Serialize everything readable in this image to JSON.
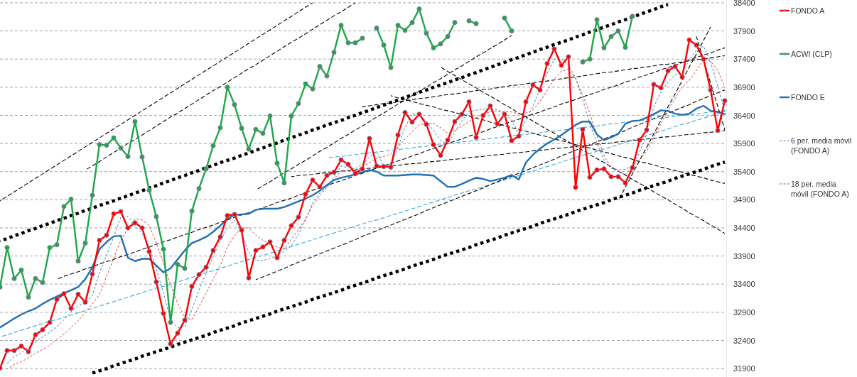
{
  "chart_data": {
    "type": "line",
    "categories": [
      null,
      null,
      null,
      null,
      null,
      null,
      null,
      null,
      null,
      null,
      null,
      null,
      null,
      null,
      null,
      null,
      null,
      null,
      null,
      null,
      null,
      null,
      null,
      null,
      null,
      null,
      null,
      null,
      null,
      null,
      null,
      null,
      null,
      null,
      null,
      null,
      null,
      null,
      null,
      null,
      null,
      null,
      null,
      null,
      null,
      null,
      null,
      null,
      null,
      null,
      null,
      null,
      null,
      null,
      null,
      null,
      null,
      null,
      null,
      null,
      null,
      null,
      null,
      null,
      null,
      null,
      null,
      null,
      null,
      null,
      null,
      null,
      null,
      null,
      null,
      null,
      null,
      null,
      null,
      null,
      null,
      null,
      null,
      null,
      null,
      null,
      null,
      null,
      null,
      null,
      null,
      null,
      null,
      null,
      null,
      null,
      null,
      null,
      null,
      null,
      null,
      null,
      null
    ],
    "ylim": [
      31750,
      38450
    ],
    "yticks": [
      31900,
      32400,
      32900,
      33400,
      33900,
      34400,
      34900,
      35400,
      35900,
      36400,
      36900,
      37400,
      37900,
      38400
    ],
    "tick_labels": "y",
    "grid": "y",
    "legend": "right",
    "series": [
      {
        "name": "FONDO A",
        "color": "#ff0000",
        "marker": "circle",
        "values": [
          31910,
          32220,
          32220,
          32300,
          32200,
          32500,
          32590,
          32720,
          33130,
          33230,
          32970,
          33220,
          33080,
          33580,
          34180,
          34270,
          34650,
          34690,
          34400,
          34490,
          34400,
          33980,
          33440,
          32880,
          32340,
          32530,
          32760,
          33360,
          33570,
          33700,
          34000,
          34240,
          34620,
          34640,
          34360,
          33510,
          34000,
          34060,
          34150,
          33870,
          34180,
          34440,
          34590,
          35000,
          35250,
          35130,
          35330,
          35390,
          35610,
          35530,
          35370,
          35450,
          35990,
          35500,
          35490,
          35480,
          36050,
          36450,
          36280,
          36420,
          36240,
          35880,
          35690,
          35960,
          36290,
          36420,
          36640,
          36010,
          36400,
          36570,
          36250,
          36420,
          35950,
          36030,
          36640,
          36940,
          36850,
          37320,
          37580,
          37290,
          37440,
          35120,
          36150,
          35300,
          35430,
          35450,
          35310,
          35310,
          35200,
          35470,
          35960,
          36140,
          36950,
          36890,
          37190,
          37270,
          37080,
          37740,
          37650,
          37400,
          36850,
          36130,
          36660
        ]
      },
      {
        "name": "ACWI (CLP)",
        "color": "#1fa64a",
        "marker": "circle",
        "values": [
          33350,
          34050,
          33500,
          33650,
          33170,
          33500,
          33430,
          34050,
          34100,
          34780,
          34910,
          33810,
          34130,
          34980,
          35880,
          35870,
          36000,
          35820,
          35670,
          36290,
          35660,
          35070,
          34600,
          34020,
          32720,
          33750,
          33680,
          34700,
          35100,
          35450,
          35860,
          36180,
          36900,
          36590,
          36170,
          35800,
          36150,
          36080,
          36390,
          35550,
          35200,
          36390,
          36610,
          36960,
          36870,
          37270,
          37100,
          37520,
          38000,
          37690,
          37690,
          37770,
          null,
          37950,
          37650,
          37250,
          38000,
          37910,
          38050,
          38290,
          37860,
          37600,
          37670,
          37800,
          38050,
          null,
          38080,
          38030,
          null,
          null,
          null,
          38130,
          37900,
          null,
          null,
          null,
          null,
          null,
          null,
          null,
          null,
          null,
          37350,
          37400,
          38100,
          37600,
          37800,
          37900,
          37610,
          38160,
          null,
          null,
          null,
          null,
          null,
          null,
          null,
          null,
          null,
          null,
          null,
          null,
          null
        ]
      },
      {
        "name": "FONDO E",
        "color": "#2270b4",
        "values": [
          32630,
          32710,
          32790,
          32860,
          32920,
          32970,
          33050,
          33120,
          33180,
          33240,
          33290,
          33350,
          33490,
          33700,
          34020,
          34150,
          34250,
          34260,
          33870,
          33810,
          33850,
          33850,
          33730,
          33610,
          33680,
          33840,
          34000,
          34130,
          34180,
          34240,
          34330,
          34440,
          34560,
          34630,
          34640,
          34650,
          34720,
          34740,
          34740,
          34740,
          34770,
          34820,
          34870,
          34920,
          34980,
          35060,
          35160,
          35250,
          35290,
          35320,
          35350,
          35390,
          35430,
          35400,
          35330,
          35330,
          35330,
          35340,
          35350,
          35350,
          35340,
          35330,
          35230,
          35130,
          35130,
          35180,
          35240,
          35290,
          35270,
          35230,
          35260,
          35290,
          35340,
          35260,
          35560,
          35700,
          35810,
          35900,
          35970,
          36050,
          36140,
          36230,
          36290,
          36290,
          36060,
          35960,
          36010,
          36070,
          36250,
          36300,
          36310,
          36360,
          36420,
          36490,
          36480,
          36430,
          36410,
          36430,
          36520,
          36570,
          36480,
          36460,
          36420
        ]
      },
      {
        "name": "6 per. media móvil (FONDO A)",
        "color": "#3a86cc",
        "line_style": "dashed",
        "values": [
          null,
          31990,
          32110,
          32180,
          32280,
          32370,
          32460,
          32550,
          32640,
          32770,
          32910,
          33020,
          33060,
          33200,
          33600,
          33920,
          34240,
          34590,
          34600,
          34440,
          34300,
          34070,
          33670,
          33240,
          32760,
          32630,
          32640,
          32950,
          33290,
          33600,
          33890,
          34170,
          34400,
          34530,
          34310,
          33970,
          33830,
          33820,
          33860,
          33910,
          33980,
          34080,
          34290,
          34540,
          34850,
          35020,
          35120,
          35310,
          35500,
          35470,
          35450,
          35530,
          35660,
          35750,
          35500,
          35530,
          35830,
          36190,
          36420,
          36420,
          36300,
          36130,
          35950,
          35890,
          36110,
          36300,
          36470,
          36490,
          36510,
          36510,
          36500,
          36440,
          36310,
          36080,
          36310,
          36560,
          36880,
          37150,
          37400,
          37400,
          37290,
          37070,
          36680,
          36240,
          35920,
          35600,
          35460,
          35410,
          35350,
          35500,
          35740,
          36060,
          36550,
          36810,
          36990,
          37120,
          37180,
          37380,
          37560,
          37630,
          37350,
          36920,
          36470
        ]
      },
      {
        "name": "18 per. media móvil (FONDO A)",
        "color": "#e04040",
        "line_style": "dashed",
        "values": [
          null,
          31890,
          31970,
          32020,
          32090,
          32170,
          32240,
          32310,
          32420,
          32510,
          32630,
          32750,
          32890,
          33050,
          33220,
          33540,
          33860,
          34180,
          34390,
          34560,
          34540,
          34440,
          34130,
          33780,
          33390,
          33060,
          32820,
          32760,
          33000,
          33240,
          33490,
          33730,
          34060,
          34260,
          34400,
          34400,
          34270,
          34180,
          34100,
          34060,
          34020,
          34200,
          34370,
          34560,
          34800,
          34970,
          35120,
          35270,
          35410,
          35410,
          35410,
          35490,
          35560,
          35640,
          35670,
          35710,
          35840,
          35980,
          36110,
          36230,
          36260,
          36260,
          36180,
          36080,
          36130,
          36210,
          36290,
          36360,
          36410,
          36470,
          36470,
          36470,
          36460,
          36430,
          36440,
          36490,
          36650,
          36840,
          37040,
          37190,
          37210,
          37050,
          36760,
          36440,
          36050,
          35680,
          35480,
          35430,
          35440,
          35500,
          35620,
          35760,
          36010,
          36250,
          36490,
          36700,
          36900,
          37020,
          37200,
          37400,
          37360,
          37210,
          36890
        ]
      },
      {
        "color": "#000000",
        "line_style": "dotted",
        "values": [
          34170,
          34210,
          34260,
          34300,
          34350,
          34390,
          34440,
          34480,
          34530,
          34570,
          34620,
          34660,
          34710,
          34750,
          34800,
          34840,
          34880,
          34930,
          34970,
          35020,
          35060,
          35110,
          35150,
          35200,
          35240,
          35290,
          35330,
          35380,
          35420,
          35470,
          35510,
          35560,
          35600,
          35640,
          35690,
          35730,
          35780,
          35820,
          35870,
          35910,
          35960,
          36000,
          36050,
          36090,
          36140,
          36180,
          36230,
          36270,
          36310,
          36360,
          36400,
          36450,
          36490,
          36540,
          36580,
          36630,
          36670,
          36720,
          36760,
          36810,
          36850,
          36900,
          36940,
          36980,
          37030,
          37070,
          37120,
          37160,
          37210,
          37250,
          37300,
          37340,
          37390,
          37430,
          37480,
          37520,
          37570,
          37610,
          37660,
          37700,
          37740,
          37790,
          37830,
          37880,
          37920,
          37970,
          38010,
          38060,
          38100,
          38150,
          38190,
          38240,
          38280,
          38330,
          38370,
          null,
          null,
          null,
          null,
          null,
          null,
          null,
          null
        ]
      },
      {
        "color": "#000000",
        "line_style": "dotted",
        "values": [
          null,
          null,
          null,
          null,
          null,
          null,
          null,
          null,
          null,
          null,
          null,
          null,
          null,
          31820,
          31860,
          31900,
          31950,
          31990,
          32030,
          32070,
          32120,
          32160,
          32200,
          32240,
          32280,
          32330,
          32370,
          32410,
          32450,
          32490,
          32540,
          32580,
          32620,
          32660,
          32710,
          32750,
          32790,
          32830,
          32870,
          32920,
          32960,
          33000,
          33040,
          33080,
          33130,
          33170,
          33210,
          33250,
          33290,
          33340,
          33380,
          33420,
          33460,
          33510,
          33550,
          33590,
          33630,
          33670,
          33720,
          33760,
          33800,
          33840,
          33890,
          33930,
          33970,
          34010,
          34050,
          34100,
          34140,
          34180,
          34220,
          34270,
          34310,
          34350,
          34390,
          34430,
          34480,
          34520,
          34560,
          34600,
          34640,
          34690,
          34730,
          34770,
          34810,
          34850,
          34900,
          34940,
          34980,
          35020,
          35070,
          35110,
          35150,
          35190,
          35230,
          35280,
          35320,
          35360,
          35400,
          35440,
          35490,
          35530,
          35570
        ]
      },
      {
        "color": "#000000",
        "line_style": "dashed",
        "values": [
          null,
          null,
          null,
          null,
          null,
          null,
          null,
          null,
          null,
          null,
          null,
          null,
          null,
          null,
          null,
          null,
          null,
          null,
          null,
          null,
          null,
          null,
          null,
          null,
          null,
          null,
          null,
          null,
          null,
          null,
          null,
          null,
          null,
          null,
          null,
          null,
          null,
          null,
          null,
          null,
          null,
          null,
          null,
          null,
          null,
          null,
          null,
          null,
          null,
          null,
          null,
          36550,
          36570,
          36590,
          36610,
          36620,
          36640,
          36660,
          36680,
          36700,
          36710,
          36730,
          36750,
          36770,
          36780,
          36800,
          36820,
          36840,
          36860,
          36870,
          36890,
          36910,
          36930,
          36940,
          36960,
          36980,
          37000,
          37010,
          37030,
          37050,
          37070,
          37080,
          37100,
          37120,
          37140,
          37160,
          37170,
          37190,
          37210,
          37230,
          37240,
          37260,
          37280,
          37300,
          37310,
          37330,
          37350,
          37370,
          37390,
          37400,
          37420,
          37440,
          37460
        ]
      },
      {
        "color": "#000000",
        "line_style": "dashed",
        "values": [
          null,
          null,
          null,
          null,
          null,
          null,
          null,
          null,
          null,
          null,
          null,
          null,
          null,
          null,
          null,
          null,
          null,
          null,
          null,
          null,
          null,
          null,
          null,
          null,
          null,
          null,
          null,
          null,
          null,
          null,
          null,
          null,
          null,
          null,
          null,
          null,
          null,
          null,
          null,
          null,
          null,
          35310,
          35330,
          35340,
          35350,
          35370,
          35380,
          35390,
          35410,
          35420,
          35430,
          35450,
          35460,
          35470,
          35490,
          35500,
          35510,
          35530,
          35540,
          35550,
          35570,
          35580,
          35590,
          35610,
          35620,
          35630,
          35650,
          35660,
          35670,
          35690,
          35700,
          35710,
          35730,
          35740,
          35750,
          35770,
          35780,
          35790,
          35810,
          35820,
          35830,
          35850,
          35860,
          35870,
          35890,
          35900,
          35910,
          35930,
          35940,
          35950,
          35970,
          35980,
          35990,
          36010,
          36020,
          36030,
          36050,
          36060,
          36070,
          36090,
          36100,
          36110,
          36130
        ]
      },
      {
        "color": "#000000",
        "line_style": "dashed",
        "values": [
          34880,
          34960,
          35040,
          35120,
          35200,
          35280,
          35360,
          35440,
          35520,
          35600,
          35680,
          35760,
          35840,
          35920,
          36000,
          36080,
          36160,
          36240,
          36320,
          36400,
          36480,
          36560,
          36640,
          36720,
          36800,
          36880,
          36960,
          37040,
          37120,
          37200,
          37280,
          37360,
          37440,
          37520,
          37600,
          37680,
          37760,
          37840,
          37920,
          38000,
          38080,
          38160,
          38240,
          38320,
          38400,
          null,
          null,
          null,
          null,
          null,
          null,
          null,
          null,
          null,
          null,
          null,
          null,
          null,
          null,
          null,
          null,
          null,
          null,
          null,
          null,
          null,
          null,
          null,
          null,
          null,
          null,
          null,
          null,
          null,
          null,
          null,
          null,
          null,
          null,
          null,
          null,
          null,
          null,
          null,
          null,
          null,
          null,
          null,
          null,
          null,
          null,
          null,
          null,
          null,
          null,
          null,
          null,
          null,
          null,
          null,
          null,
          null,
          null
        ]
      },
      {
        "color": "#000000",
        "line_style": "dashed",
        "values": [
          null,
          null,
          null,
          null,
          null,
          null,
          null,
          null,
          null,
          null,
          null,
          null,
          35430,
          35500,
          35580,
          35660,
          35740,
          35820,
          35900,
          35970,
          36050,
          36130,
          36210,
          36290,
          36370,
          36440,
          36520,
          36600,
          36680,
          36760,
          36840,
          36910,
          36990,
          37070,
          37150,
          37230,
          37300,
          37380,
          37460,
          37540,
          37620,
          37700,
          37770,
          37850,
          37930,
          38010,
          38090,
          38170,
          38240,
          38320,
          38400,
          null,
          null,
          null,
          null,
          null,
          null,
          null,
          null,
          null,
          null,
          null,
          null,
          null,
          null,
          null,
          null,
          null,
          null,
          null,
          null,
          null,
          null,
          null,
          null,
          null,
          null,
          null,
          null,
          null,
          null,
          null,
          null,
          null,
          null,
          null,
          null,
          null,
          null,
          null,
          null,
          null,
          null,
          null,
          null,
          null,
          null,
          null,
          null,
          null,
          null,
          null,
          null
        ]
      },
      {
        "color": "#000000",
        "line_style": "dashed",
        "values": [
          null,
          null,
          null,
          null,
          null,
          null,
          null,
          null,
          null,
          null,
          null,
          null,
          null,
          null,
          null,
          null,
          null,
          null,
          null,
          null,
          null,
          null,
          null,
          null,
          null,
          null,
          null,
          null,
          null,
          null,
          null,
          null,
          null,
          null,
          null,
          null,
          35070,
          35150,
          35220,
          35300,
          35380,
          35450,
          35530,
          35600,
          35680,
          35760,
          35830,
          35910,
          35990,
          36060,
          36140,
          36210,
          36290,
          36370,
          36440,
          36520,
          36600,
          36670,
          36750,
          36830,
          36900,
          36980,
          37050,
          37130,
          37210,
          37280,
          37360,
          37440,
          37510,
          37590,
          37660,
          37740,
          37820,
          null,
          null,
          null,
          null,
          null,
          null,
          null,
          null,
          null,
          null,
          null,
          null,
          null,
          null,
          null,
          null,
          null,
          null,
          null,
          null,
          null,
          null,
          null,
          null,
          null,
          null,
          null,
          null,
          null,
          null
        ]
      },
      {
        "color": "#000000",
        "line_style": "dashed",
        "values": [
          null,
          null,
          null,
          null,
          null,
          null,
          null,
          null,
          null,
          null,
          null,
          null,
          null,
          null,
          null,
          null,
          null,
          null,
          null,
          null,
          null,
          null,
          null,
          null,
          null,
          null,
          null,
          null,
          null,
          null,
          null,
          null,
          null,
          null,
          null,
          null,
          33480,
          33530,
          33580,
          33630,
          33680,
          33740,
          33790,
          33840,
          33890,
          33940,
          33990,
          34040,
          34090,
          34140,
          34190,
          34250,
          34300,
          34350,
          34400,
          34450,
          34500,
          34550,
          34600,
          34650,
          34710,
          34760,
          34810,
          34860,
          34910,
          34960,
          35010,
          35060,
          35110,
          35170,
          35220,
          35270,
          35320,
          35370,
          35420,
          35470,
          35520,
          35570,
          35620,
          35680,
          35730,
          35780,
          35830,
          35880,
          35930,
          35980,
          36030,
          36080,
          36130,
          36190,
          36240,
          36290,
          36340,
          36390,
          36440,
          36490,
          36540,
          36590,
          36650,
          36700,
          36750,
          36800,
          36850
        ]
      },
      {
        "color": "#000000",
        "line_style": "dashed",
        "values": [
          null,
          null,
          null,
          null,
          null,
          null,
          null,
          null,
          33490,
          33540,
          33580,
          33620,
          33670,
          33710,
          33760,
          33800,
          33840,
          33890,
          33930,
          33970,
          34020,
          34060,
          34110,
          34150,
          34190,
          34240,
          34280,
          34320,
          34370,
          34410,
          34450,
          34500,
          34540,
          34590,
          34630,
          34670,
          34720,
          34760,
          34800,
          34850,
          34890,
          34930,
          34980,
          35020,
          35070,
          35110,
          35150,
          35200,
          35240,
          35280,
          35330,
          35370,
          35420,
          35460,
          35500,
          35550,
          35590,
          35630,
          35680,
          35720,
          35770,
          35810,
          35850,
          35900,
          35940,
          35980,
          36030,
          36070,
          36110,
          36160,
          36200,
          36250,
          36290,
          36330,
          36380,
          36420,
          36460,
          36510,
          36550,
          36600,
          36640,
          36680,
          36730,
          36770,
          36810,
          36860,
          36900,
          36940,
          36990,
          37030,
          37080,
          37120,
          37160,
          37210,
          37250,
          37290,
          37340,
          37380,
          37430,
          37470,
          37510,
          37560,
          37600
        ]
      },
      {
        "color": "#000000",
        "line_style": "dashed",
        "values": [
          null,
          null,
          null,
          null,
          null,
          null,
          null,
          null,
          null,
          null,
          null,
          null,
          null,
          null,
          null,
          null,
          null,
          null,
          null,
          null,
          null,
          null,
          null,
          null,
          null,
          null,
          null,
          null,
          null,
          null,
          null,
          null,
          null,
          null,
          null,
          null,
          null,
          null,
          null,
          null,
          null,
          null,
          null,
          null,
          null,
          null,
          null,
          null,
          null,
          null,
          null,
          null,
          null,
          null,
          null,
          36750,
          36710,
          36680,
          36650,
          36610,
          36580,
          36550,
          36510,
          36480,
          36450,
          36420,
          36380,
          36350,
          36320,
          36280,
          36250,
          36220,
          36180,
          36150,
          36120,
          36080,
          36050,
          36020,
          35980,
          35950,
          35920,
          35880,
          35850,
          35820,
          35780,
          35750,
          35720,
          35680,
          35650,
          35620,
          35580,
          35550,
          35520,
          35480,
          35450,
          35420,
          35390,
          35350,
          35320,
          35290,
          35250,
          35220,
          35190
        ]
      },
      {
        "color": "#000000",
        "line_style": "dashed",
        "values": [
          null,
          null,
          null,
          null,
          null,
          null,
          null,
          null,
          null,
          null,
          null,
          null,
          null,
          null,
          null,
          null,
          null,
          null,
          null,
          null,
          null,
          null,
          null,
          null,
          null,
          null,
          null,
          null,
          null,
          null,
          null,
          null,
          null,
          null,
          null,
          null,
          null,
          null,
          null,
          null,
          null,
          null,
          null,
          null,
          null,
          null,
          null,
          null,
          null,
          null,
          null,
          null,
          null,
          null,
          null,
          null,
          null,
          null,
          null,
          null,
          null,
          null,
          37260,
          37180,
          37110,
          37030,
          36960,
          36890,
          36810,
          36740,
          36670,
          36590,
          36520,
          36440,
          36370,
          36300,
          36220,
          36150,
          36080,
          36000,
          35930,
          35850,
          35780,
          35700,
          35630,
          35560,
          35480,
          35410,
          35340,
          35260,
          35190,
          35120,
          35040,
          34970,
          34900,
          34820,
          34750,
          34670,
          34600,
          34530,
          34450,
          34380,
          34300
        ]
      },
      {
        "color": "#000000",
        "line_style": "dashed",
        "values": [
          null,
          null,
          null,
          null,
          null,
          null,
          null,
          null,
          null,
          null,
          null,
          null,
          null,
          null,
          null,
          null,
          null,
          null,
          null,
          null,
          null,
          null,
          null,
          null,
          null,
          null,
          null,
          null,
          null,
          null,
          null,
          null,
          null,
          null,
          null,
          null,
          null,
          null,
          null,
          null,
          null,
          null,
          null,
          null,
          null,
          null,
          null,
          null,
          null,
          null,
          null,
          null,
          null,
          null,
          null,
          null,
          null,
          null,
          null,
          null,
          null,
          null,
          null,
          null,
          null,
          null,
          null,
          null,
          null,
          null,
          null,
          null,
          null,
          null,
          null,
          null,
          null,
          null,
          null,
          null,
          null,
          null,
          null,
          null,
          null,
          null,
          null,
          null,
          null,
          null,
          null,
          null,
          null,
          null,
          null,
          null,
          null,
          null,
          37800,
          37390,
          36970,
          36560,
          36140
        ]
      },
      {
        "color": "#000000",
        "line_style": "dashed",
        "values": [
          null,
          null,
          null,
          null,
          null,
          null,
          null,
          null,
          null,
          null,
          null,
          null,
          null,
          null,
          null,
          null,
          null,
          null,
          null,
          null,
          null,
          null,
          null,
          null,
          null,
          null,
          null,
          null,
          null,
          null,
          null,
          null,
          null,
          null,
          null,
          null,
          null,
          null,
          null,
          null,
          null,
          null,
          null,
          null,
          null,
          null,
          null,
          null,
          null,
          null,
          null,
          null,
          null,
          null,
          null,
          null,
          null,
          null,
          null,
          null,
          null,
          null,
          null,
          null,
          null,
          null,
          null,
          null,
          null,
          null,
          null,
          null,
          null,
          null,
          null,
          null,
          null,
          null,
          null,
          null,
          null,
          null,
          null,
          null,
          null,
          null,
          null,
          34890,
          35120,
          35360,
          35600,
          35830,
          36070,
          36310,
          36550,
          36780,
          37020,
          37260,
          37490,
          37730,
          37970,
          null,
          null
        ]
      },
      {
        "color": "#3aa8dc",
        "line_style": "dashed",
        "values": [
          32460,
          32500,
          32540,
          32580,
          32620,
          32660,
          32700,
          32740,
          32770,
          32810,
          32850,
          32890,
          32930,
          32970,
          33010,
          33050,
          33090,
          33130,
          33170,
          33210,
          33250,
          33290,
          33330,
          33360,
          33400,
          33440,
          33480,
          33520,
          33560,
          33600,
          33640,
          33680,
          33720,
          33760,
          33800,
          33840,
          33880,
          33910,
          33950,
          33990,
          34030,
          34070,
          34110,
          34150,
          34190,
          34230,
          34270,
          34310,
          34350,
          34390,
          34430,
          34470,
          34510,
          34540,
          34580,
          34620,
          34660,
          34700,
          34740,
          34780,
          34820,
          34860,
          34900,
          34940,
          34980,
          35020,
          35060,
          35090,
          35130,
          35170,
          35210,
          35250,
          35290,
          35330,
          35370,
          35410,
          35450,
          35490,
          35530,
          35570,
          35610,
          35650,
          35690,
          35720,
          35760,
          35800,
          35840,
          35880,
          35920,
          35960,
          36000,
          36040,
          36080,
          36120,
          36160,
          36200,
          36240,
          36270,
          36310,
          36350,
          36390,
          36430,
          36470
        ]
      },
      {
        "color": "#3aa8dc",
        "line_style": "dashed",
        "values": [
          null,
          null,
          null,
          null,
          null,
          null,
          null,
          null,
          null,
          null,
          null,
          null,
          null,
          null,
          null,
          null,
          null,
          null,
          null,
          null,
          null,
          null,
          null,
          null,
          null,
          null,
          null,
          null,
          null,
          null,
          null,
          null,
          null,
          null,
          null,
          null,
          null,
          null,
          null,
          null,
          null,
          null,
          null,
          null,
          null,
          null,
          35640,
          35660,
          35670,
          35690,
          35700,
          35720,
          35730,
          35750,
          35760,
          35780,
          35790,
          35810,
          35820,
          35840,
          35850,
          35870,
          35880,
          35900,
          35910,
          35930,
          35940,
          35960,
          35970,
          35990,
          36000,
          36020,
          36030,
          36050,
          36060,
          36080,
          36090,
          36110,
          36120,
          36140,
          36150,
          36170,
          36180,
          36200,
          36210,
          36230,
          36250,
          36260,
          36280,
          36290,
          36310,
          36320,
          36340,
          36350,
          36370,
          36380,
          36400,
          36410,
          36430,
          36440,
          36460,
          36470,
          36490
        ]
      }
    ]
  }
}
